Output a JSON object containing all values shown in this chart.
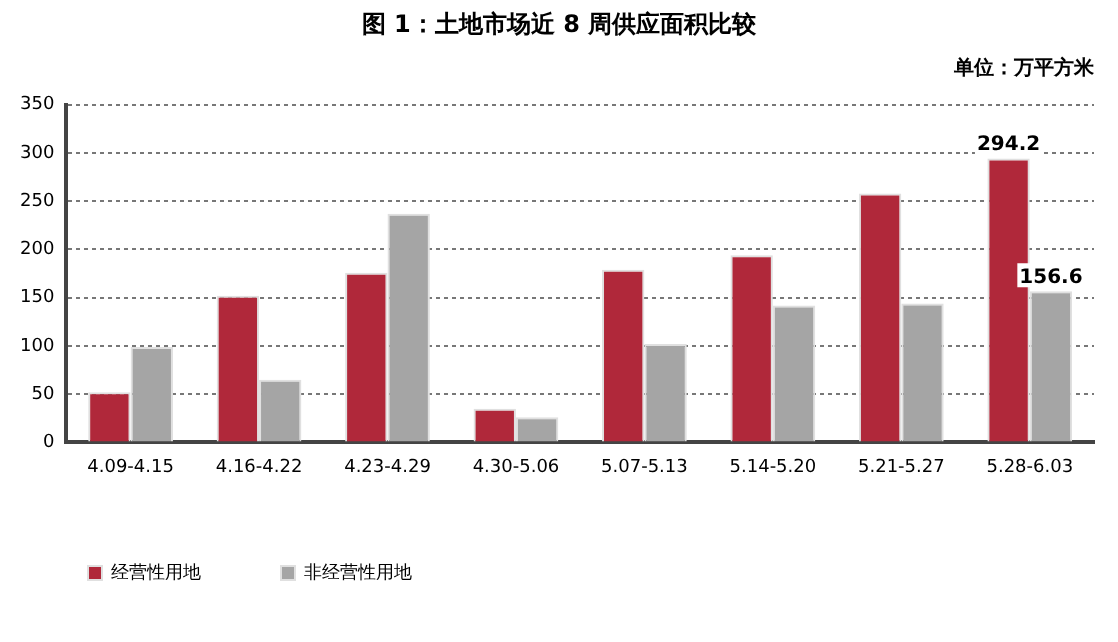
{
  "chart_data": {
    "type": "bar",
    "title": "图 1：土地市场近 8 周供应面积比较",
    "annotations": [
      "单位：万平方米"
    ],
    "categories": [
      "4.09-4.15",
      "4.16-4.22",
      "4.23-4.29",
      "4.30-5.06",
      "5.07-5.13",
      "5.14-5.20",
      "5.21-5.27",
      "5.28-6.03"
    ],
    "series": [
      {
        "name": "经营性用地",
        "color": "#b0283a",
        "values": [
          52,
          152,
          176,
          35,
          179,
          194,
          258,
          294.2
        ],
        "value_labels": [
          null,
          null,
          null,
          null,
          null,
          null,
          null,
          "294.2"
        ]
      },
      {
        "name": "非经营性用地",
        "color": "#a5a5a5",
        "values": [
          99,
          65,
          237,
          26,
          102,
          142,
          144,
          156.6
        ],
        "value_labels": [
          null,
          null,
          null,
          null,
          null,
          null,
          null,
          "156.6"
        ]
      }
    ],
    "ylim": [
      0,
      350
    ],
    "yticks": [
      0,
      50,
      100,
      150,
      200,
      250,
      300,
      350
    ],
    "grid": "y",
    "legend": "bottom"
  }
}
